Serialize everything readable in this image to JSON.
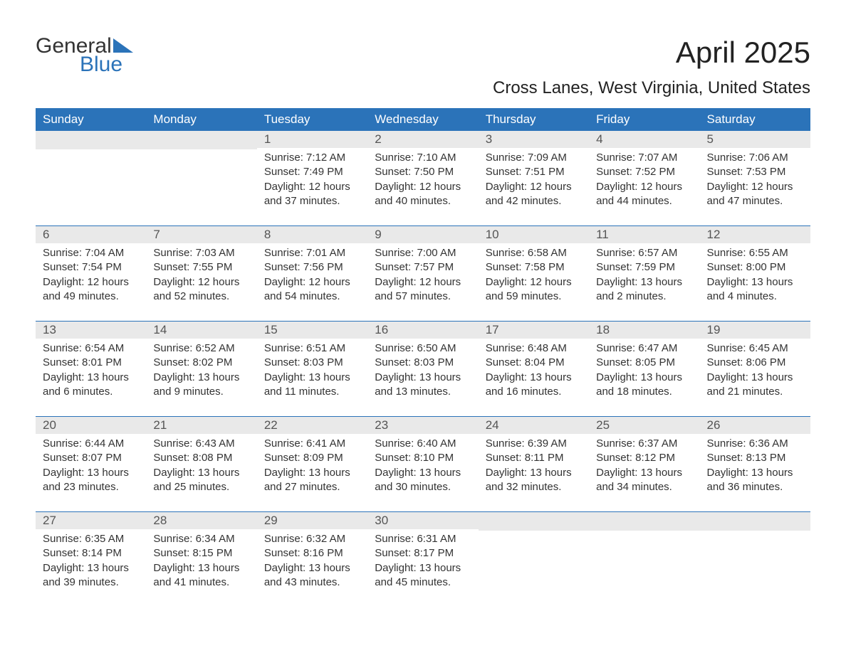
{
  "logo": {
    "word1": "General",
    "word2": "Blue",
    "tri_color": "#2b73b9"
  },
  "title": "April 2025",
  "subtitle": "Cross Lanes, West Virginia, United States",
  "colors": {
    "header_bg": "#2b73b9",
    "header_fg": "#ffffff",
    "daynum_bg": "#e9e9e9",
    "text": "#333333",
    "rule": "#2b73b9",
    "page_bg": "#ffffff"
  },
  "layout": {
    "type": "calendar-month",
    "columns": 7,
    "rows": 5
  },
  "weekdays": [
    "Sunday",
    "Monday",
    "Tuesday",
    "Wednesday",
    "Thursday",
    "Friday",
    "Saturday"
  ],
  "weeks": [
    [
      null,
      null,
      {
        "d": "1",
        "sunrise": "7:12 AM",
        "sunset": "7:49 PM",
        "daylight": "12 hours and 37 minutes."
      },
      {
        "d": "2",
        "sunrise": "7:10 AM",
        "sunset": "7:50 PM",
        "daylight": "12 hours and 40 minutes."
      },
      {
        "d": "3",
        "sunrise": "7:09 AM",
        "sunset": "7:51 PM",
        "daylight": "12 hours and 42 minutes."
      },
      {
        "d": "4",
        "sunrise": "7:07 AM",
        "sunset": "7:52 PM",
        "daylight": "12 hours and 44 minutes."
      },
      {
        "d": "5",
        "sunrise": "7:06 AM",
        "sunset": "7:53 PM",
        "daylight": "12 hours and 47 minutes."
      }
    ],
    [
      {
        "d": "6",
        "sunrise": "7:04 AM",
        "sunset": "7:54 PM",
        "daylight": "12 hours and 49 minutes."
      },
      {
        "d": "7",
        "sunrise": "7:03 AM",
        "sunset": "7:55 PM",
        "daylight": "12 hours and 52 minutes."
      },
      {
        "d": "8",
        "sunrise": "7:01 AM",
        "sunset": "7:56 PM",
        "daylight": "12 hours and 54 minutes."
      },
      {
        "d": "9",
        "sunrise": "7:00 AM",
        "sunset": "7:57 PM",
        "daylight": "12 hours and 57 minutes."
      },
      {
        "d": "10",
        "sunrise": "6:58 AM",
        "sunset": "7:58 PM",
        "daylight": "12 hours and 59 minutes."
      },
      {
        "d": "11",
        "sunrise": "6:57 AM",
        "sunset": "7:59 PM",
        "daylight": "13 hours and 2 minutes."
      },
      {
        "d": "12",
        "sunrise": "6:55 AM",
        "sunset": "8:00 PM",
        "daylight": "13 hours and 4 minutes."
      }
    ],
    [
      {
        "d": "13",
        "sunrise": "6:54 AM",
        "sunset": "8:01 PM",
        "daylight": "13 hours and 6 minutes."
      },
      {
        "d": "14",
        "sunrise": "6:52 AM",
        "sunset": "8:02 PM",
        "daylight": "13 hours and 9 minutes."
      },
      {
        "d": "15",
        "sunrise": "6:51 AM",
        "sunset": "8:03 PM",
        "daylight": "13 hours and 11 minutes."
      },
      {
        "d": "16",
        "sunrise": "6:50 AM",
        "sunset": "8:03 PM",
        "daylight": "13 hours and 13 minutes."
      },
      {
        "d": "17",
        "sunrise": "6:48 AM",
        "sunset": "8:04 PM",
        "daylight": "13 hours and 16 minutes."
      },
      {
        "d": "18",
        "sunrise": "6:47 AM",
        "sunset": "8:05 PM",
        "daylight": "13 hours and 18 minutes."
      },
      {
        "d": "19",
        "sunrise": "6:45 AM",
        "sunset": "8:06 PM",
        "daylight": "13 hours and 21 minutes."
      }
    ],
    [
      {
        "d": "20",
        "sunrise": "6:44 AM",
        "sunset": "8:07 PM",
        "daylight": "13 hours and 23 minutes."
      },
      {
        "d": "21",
        "sunrise": "6:43 AM",
        "sunset": "8:08 PM",
        "daylight": "13 hours and 25 minutes."
      },
      {
        "d": "22",
        "sunrise": "6:41 AM",
        "sunset": "8:09 PM",
        "daylight": "13 hours and 27 minutes."
      },
      {
        "d": "23",
        "sunrise": "6:40 AM",
        "sunset": "8:10 PM",
        "daylight": "13 hours and 30 minutes."
      },
      {
        "d": "24",
        "sunrise": "6:39 AM",
        "sunset": "8:11 PM",
        "daylight": "13 hours and 32 minutes."
      },
      {
        "d": "25",
        "sunrise": "6:37 AM",
        "sunset": "8:12 PM",
        "daylight": "13 hours and 34 minutes."
      },
      {
        "d": "26",
        "sunrise": "6:36 AM",
        "sunset": "8:13 PM",
        "daylight": "13 hours and 36 minutes."
      }
    ],
    [
      {
        "d": "27",
        "sunrise": "6:35 AM",
        "sunset": "8:14 PM",
        "daylight": "13 hours and 39 minutes."
      },
      {
        "d": "28",
        "sunrise": "6:34 AM",
        "sunset": "8:15 PM",
        "daylight": "13 hours and 41 minutes."
      },
      {
        "d": "29",
        "sunrise": "6:32 AM",
        "sunset": "8:16 PM",
        "daylight": "13 hours and 43 minutes."
      },
      {
        "d": "30",
        "sunrise": "6:31 AM",
        "sunset": "8:17 PM",
        "daylight": "13 hours and 45 minutes."
      },
      null,
      null,
      null
    ]
  ],
  "labels": {
    "sunrise": "Sunrise: ",
    "sunset": "Sunset: ",
    "daylight": "Daylight: "
  }
}
